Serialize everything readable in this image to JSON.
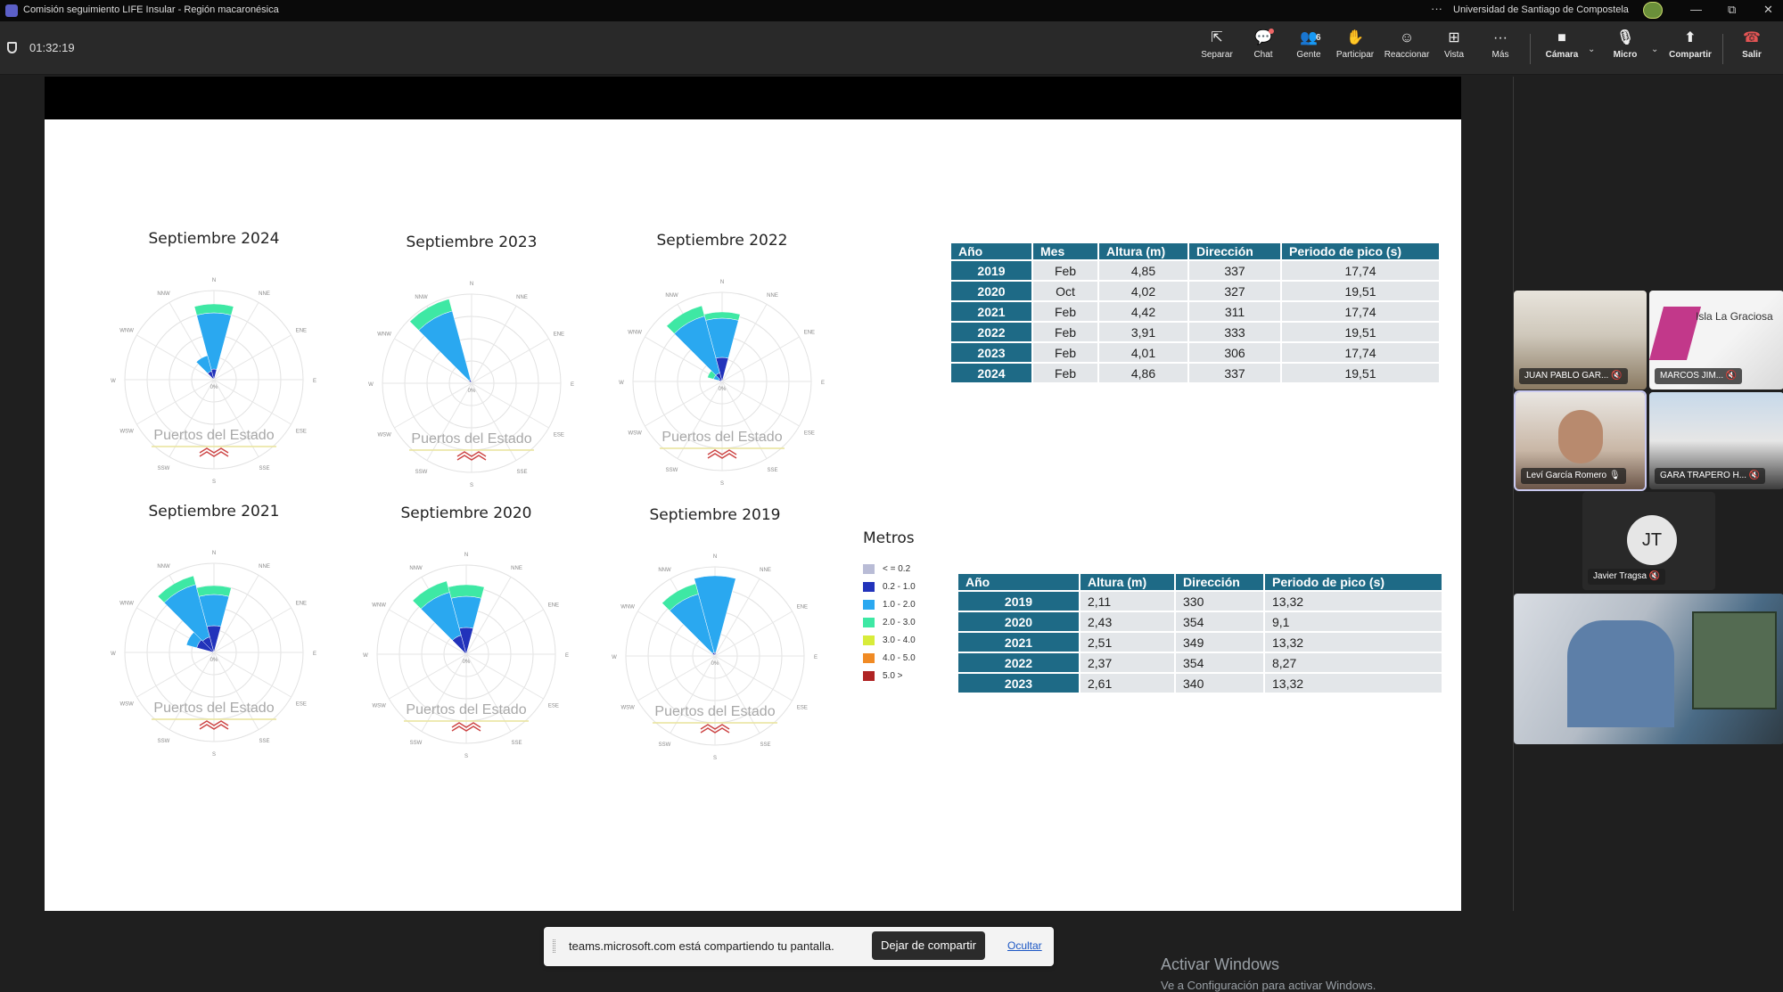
{
  "titlebar": {
    "title": "Comisión seguimiento LIFE Insular - Región macaronésica",
    "more": "···",
    "org": "Universidad de Santiago de Compostela",
    "minimize": "—",
    "restore": "⧉",
    "close": "✕"
  },
  "toolbar": {
    "timer": "01:32:19",
    "buttons": {
      "separar": "Separar",
      "chat": "Chat",
      "gente": "Gente",
      "gente_count": "6",
      "participar": "Participar",
      "reaccionar": "Reaccionar",
      "vista": "Vista",
      "mas": "Más",
      "camara": "Cámara",
      "micro": "Micro",
      "compartir": "Compartir",
      "salir": "Salir"
    }
  },
  "slide": {
    "roses": [
      {
        "title": "Septiembre 2024",
        "watermark": "Puertos del Estado"
      },
      {
        "title": "Septiembre 2023",
        "watermark": "Puertos del Estado"
      },
      {
        "title": "Septiembre 2022",
        "watermark": "Puertos del Estado"
      },
      {
        "title": "Septiembre 2021",
        "watermark": "Puertos del Estado"
      },
      {
        "title": "Septiembre 2020",
        "watermark": "Puertos del Estado"
      },
      {
        "title": "Septiembre 2019",
        "watermark": "Puertos del Estado"
      }
    ],
    "compass": {
      "N": "N",
      "NNE": "NNE",
      "ENE": "ENE",
      "E": "E",
      "ESE": "ESE",
      "SSE": "SSE",
      "S": "S",
      "SSW": "SSW",
      "WSW": "WSW",
      "W": "W",
      "WNW": "WNW",
      "NNW": "NNW",
      "center": "0%"
    },
    "legend": {
      "title": "Metros",
      "items": [
        {
          "label": "< = 0.2",
          "color": "#b9bcd6"
        },
        {
          "label": "0.2 - 1.0",
          "color": "#2233bb"
        },
        {
          "label": "1.0 - 2.0",
          "color": "#2aa8f0"
        },
        {
          "label": "2.0 - 3.0",
          "color": "#3ee8a4"
        },
        {
          "label": "3.0 - 4.0",
          "color": "#d8ec3a"
        },
        {
          "label": "4.0 - 5.0",
          "color": "#f08a24"
        },
        {
          "label": "5.0 >",
          "color": "#b02424"
        }
      ]
    },
    "table1": {
      "headers": [
        "Año",
        "Mes",
        "Altura (m)",
        "Dirección",
        "Periodo de pico (s)"
      ],
      "rows": [
        [
          "2019",
          "Feb",
          "4,85",
          "337",
          "17,74"
        ],
        [
          "2020",
          "Oct",
          "4,02",
          "327",
          "19,51"
        ],
        [
          "2021",
          "Feb",
          "4,42",
          "311",
          "17,74"
        ],
        [
          "2022",
          "Feb",
          "3,91",
          "333",
          "19,51"
        ],
        [
          "2023",
          "Feb",
          "4,01",
          "306",
          "17,74"
        ],
        [
          "2024",
          "Feb",
          "4,86",
          "337",
          "19,51"
        ]
      ]
    },
    "table2": {
      "headers": [
        "Año",
        "Altura (m)",
        "Dirección",
        "Periodo de pico (s)"
      ],
      "rows": [
        [
          "2019",
          "2,11",
          "330",
          "13,32"
        ],
        [
          "2020",
          "2,43",
          "354",
          "9,1"
        ],
        [
          "2021",
          "2,51",
          "349",
          "13,32"
        ],
        [
          "2022",
          "2,37",
          "354",
          "8,27"
        ],
        [
          "2023",
          "2,61",
          "340",
          "13,32"
        ]
      ]
    }
  },
  "activate": {
    "line1": "Activar Windows",
    "line2": "Ve a Configuración para activar Windows."
  },
  "sharebar": {
    "message": "teams.microsoft.com está compartiendo tu pantalla.",
    "stop": "Dejar de compartir",
    "hide": "Ocultar"
  },
  "participants": [
    {
      "name": "JUAN PABLO GAR..."
    },
    {
      "name": "MARCOS JIM...",
      "overlay": "Isla La Graciosa"
    },
    {
      "name": "Leví García Romero"
    },
    {
      "name": "GARA TRAPERO H..."
    },
    {
      "name": "Javier Tragsa",
      "initials": "JT"
    },
    {
      "name": ""
    }
  ]
}
